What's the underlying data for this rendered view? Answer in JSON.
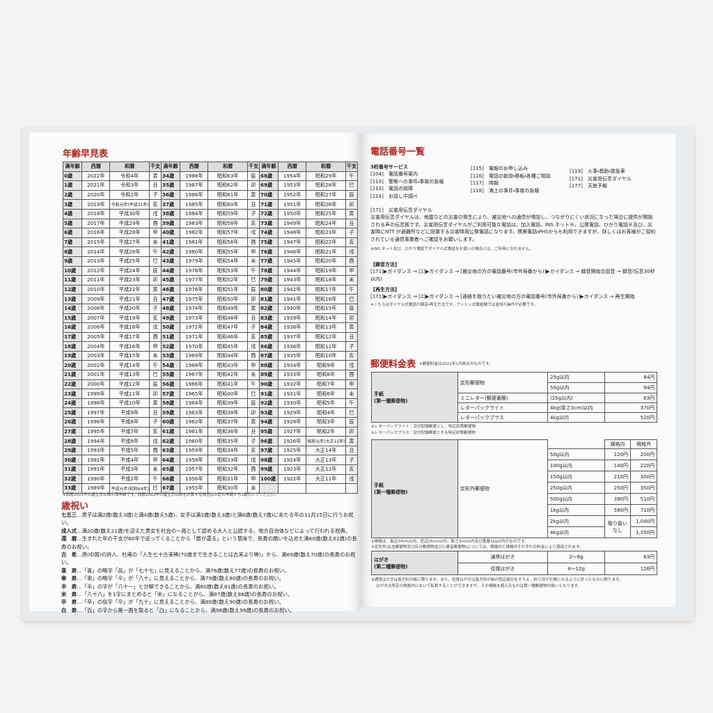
{
  "left_page": {
    "age_table": {
      "title": "年齢早見表",
      "header": [
        "満年齢",
        "西暦",
        "和暦",
        "干支",
        "満年齢",
        "西暦",
        "和暦",
        "干支",
        "満年齢",
        "西暦",
        "和暦",
        "干支"
      ],
      "rows": [
        [
          "0歳",
          "2022年",
          "令和4年",
          "寅",
          "34歳",
          "1988年",
          "昭和63年",
          "辰",
          "68歳",
          "1954年",
          "昭和29年",
          "午"
        ],
        [
          "1歳",
          "2021年",
          "令和3年",
          "丑",
          "35歳",
          "1987年",
          "昭和62年",
          "卯",
          "69歳",
          "1953年",
          "昭和28年",
          "巳"
        ],
        [
          "2歳",
          "2020年",
          "令和2年",
          "子",
          "36歳",
          "1986年",
          "昭和61年",
          "寅",
          "70歳",
          "1952年",
          "昭和27年",
          "辰"
        ],
        [
          "3歳",
          "2019年",
          "令和元年(平成31年)",
          "亥",
          "37歳",
          "1985年",
          "昭和60年",
          "丑",
          "71歳",
          "1951年",
          "昭和26年",
          "卯"
        ],
        [
          "4歳",
          "2018年",
          "平成30年",
          "戌",
          "38歳",
          "1984年",
          "昭和59年",
          "子",
          "72歳",
          "1950年",
          "昭和25年",
          "寅"
        ],
        [
          "5歳",
          "2017年",
          "平成29年",
          "酉",
          "39歳",
          "1983年",
          "昭和58年",
          "亥",
          "73歳",
          "1949年",
          "昭和24年",
          "丑"
        ],
        [
          "6歳",
          "2016年",
          "平成28年",
          "申",
          "40歳",
          "1982年",
          "昭和57年",
          "戌",
          "74歳",
          "1948年",
          "昭和23年",
          "子"
        ],
        [
          "7歳",
          "2015年",
          "平成27年",
          "未",
          "41歳",
          "1981年",
          "昭和56年",
          "酉",
          "75歳",
          "1947年",
          "昭和22年",
          "亥"
        ],
        [
          "8歳",
          "2014年",
          "平成26年",
          "午",
          "42歳",
          "1980年",
          "昭和55年",
          "申",
          "76歳",
          "1946年",
          "昭和21年",
          "戌"
        ],
        [
          "9歳",
          "2013年",
          "平成25年",
          "巳",
          "43歳",
          "1979年",
          "昭和54年",
          "未",
          "77歳",
          "1945年",
          "昭和20年",
          "酉"
        ],
        [
          "10歳",
          "2012年",
          "平成24年",
          "辰",
          "44歳",
          "1978年",
          "昭和53年",
          "午",
          "78歳",
          "1944年",
          "昭和19年",
          "申"
        ],
        [
          "11歳",
          "2011年",
          "平成23年",
          "卯",
          "45歳",
          "1977年",
          "昭和52年",
          "巳",
          "79歳",
          "1943年",
          "昭和18年",
          "未"
        ],
        [
          "12歳",
          "2010年",
          "平成22年",
          "寅",
          "46歳",
          "1976年",
          "昭和51年",
          "辰",
          "80歳",
          "1942年",
          "昭和17年",
          "午"
        ],
        [
          "13歳",
          "2009年",
          "平成21年",
          "丑",
          "47歳",
          "1975年",
          "昭和50年",
          "卯",
          "81歳",
          "1941年",
          "昭和16年",
          "巳"
        ],
        [
          "14歳",
          "2008年",
          "平成20年",
          "子",
          "48歳",
          "1974年",
          "昭和49年",
          "寅",
          "82歳",
          "1940年",
          "昭和15年",
          "辰"
        ],
        [
          "15歳",
          "2007年",
          "平成19年",
          "亥",
          "49歳",
          "1973年",
          "昭和48年",
          "丑",
          "83歳",
          "1939年",
          "昭和14年",
          "卯"
        ],
        [
          "16歳",
          "2006年",
          "平成18年",
          "戌",
          "50歳",
          "1972年",
          "昭和47年",
          "子",
          "84歳",
          "1938年",
          "昭和13年",
          "寅"
        ],
        [
          "17歳",
          "2005年",
          "平成17年",
          "酉",
          "51歳",
          "1971年",
          "昭和46年",
          "亥",
          "85歳",
          "1937年",
          "昭和12年",
          "丑"
        ],
        [
          "18歳",
          "2004年",
          "平成16年",
          "申",
          "52歳",
          "1970年",
          "昭和45年",
          "戌",
          "86歳",
          "1936年",
          "昭和11年",
          "子"
        ],
        [
          "19歳",
          "2003年",
          "平成15年",
          "未",
          "53歳",
          "1969年",
          "昭和44年",
          "酉",
          "87歳",
          "1935年",
          "昭和10年",
          "亥"
        ],
        [
          "20歳",
          "2002年",
          "平成14年",
          "午",
          "54歳",
          "1968年",
          "昭和43年",
          "申",
          "88歳",
          "1934年",
          "昭和9年",
          "戌"
        ],
        [
          "21歳",
          "2001年",
          "平成13年",
          "巳",
          "55歳",
          "1967年",
          "昭和42年",
          "未",
          "89歳",
          "1933年",
          "昭和8年",
          "酉"
        ],
        [
          "22歳",
          "2000年",
          "平成12年",
          "辰",
          "56歳",
          "1966年",
          "昭和41年",
          "午",
          "90歳",
          "1932年",
          "昭和7年",
          "申"
        ],
        [
          "23歳",
          "1999年",
          "平成11年",
          "卯",
          "57歳",
          "1965年",
          "昭和40年",
          "巳",
          "91歳",
          "1931年",
          "昭和6年",
          "未"
        ],
        [
          "24歳",
          "1998年",
          "平成10年",
          "寅",
          "58歳",
          "1964年",
          "昭和39年",
          "辰",
          "92歳",
          "1930年",
          "昭和5年",
          "午"
        ],
        [
          "25歳",
          "1997年",
          "平成9年",
          "丑",
          "59歳",
          "1963年",
          "昭和38年",
          "卯",
          "93歳",
          "1929年",
          "昭和4年",
          "巳"
        ],
        [
          "26歳",
          "1996年",
          "平成8年",
          "子",
          "60歳",
          "1962年",
          "昭和37年",
          "寅",
          "94歳",
          "1928年",
          "昭和3年",
          "辰"
        ],
        [
          "27歳",
          "1995年",
          "平成7年",
          "亥",
          "61歳",
          "1961年",
          "昭和36年",
          "丑",
          "95歳",
          "1927年",
          "昭和2年",
          "卯"
        ],
        [
          "28歳",
          "1994年",
          "平成6年",
          "戌",
          "62歳",
          "1960年",
          "昭和35年",
          "子",
          "96歳",
          "1926年",
          "昭和元年(大正15年)",
          "寅"
        ],
        [
          "29歳",
          "1993年",
          "平成5年",
          "酉",
          "63歳",
          "1959年",
          "昭和34年",
          "亥",
          "97歳",
          "1925年",
          "大正14年",
          "丑"
        ],
        [
          "30歳",
          "1992年",
          "平成4年",
          "申",
          "64歳",
          "1958年",
          "昭和33年",
          "戌",
          "98歳",
          "1924年",
          "大正13年",
          "子"
        ],
        [
          "31歳",
          "1991年",
          "平成3年",
          "未",
          "65歳",
          "1957年",
          "昭和32年",
          "酉",
          "99歳",
          "1923年",
          "大正12年",
          "亥"
        ],
        [
          "32歳",
          "1990年",
          "平成2年",
          "午",
          "66歳",
          "1956年",
          "昭和31年",
          "申",
          "100歳",
          "1922年",
          "大正11年",
          "戌"
        ],
        [
          "33歳",
          "1989年",
          "平成元年(昭和64年)",
          "巳",
          "67歳",
          "1955年",
          "昭和30年",
          "未"
        ]
      ],
      "note": "※西暦2022年の誕生日以降の満年齢です。西暦2022年の誕生日以前を計算する場合は上記の年齢から1歳引いてください。"
    },
    "celebrations": {
      "title": "歳祝い",
      "items": [
        {
          "term": "七五三",
          "text": "…男子は満2歳(数え3歳)と満4歳(数え5歳)、女子は満2歳(数え3歳)と満6歳(数え7歳)にあたる年の11月15日に行うお祝い。"
        },
        {
          "term": "成人式",
          "text": "…満20歳(数え21歳)を迎えた男女を社会の一員として認める大人と公認する、地方自治体などによって行われる祝典。"
        },
        {
          "term": "還　暦",
          "text": "…生まれた年の干支が60年で巡ってくることから「暦が還る」という意味で、長寿の願いを込めた満60歳(数え61歳)の長寿のお祝い。"
        },
        {
          "term": "古　希",
          "text": "…唐(中国)の詩人、杜甫の「人生七十古来稀(70歳まで生きることは古来より稀)」から、満69歳(数え70歳)の長寿のお祝い。"
        },
        {
          "term": "喜　寿",
          "text": "…「喜」の略字「㐂」が「七十七」に見えることから、満76歳(数え77歳)の長寿のお祝い。"
        },
        {
          "term": "傘　寿",
          "text": "…「傘」の略字「仐」が「八十」に見えることから、満79歳(数え80歳)の長寿のお祝い。"
        },
        {
          "term": "半　寿",
          "text": "…「半」の字が「八十一」と分解できることから、満80歳(数え81歳)の長寿のお祝い。"
        },
        {
          "term": "米　寿",
          "text": "…「八十八」を1字にまとめると「米」になることから、満87歳(数え88歳)の長寿のお祝い。"
        },
        {
          "term": "卒　寿",
          "text": "…「卒」の俗字「卆」が「九十」に見えることから、満89歳(数え90歳)の長寿のお祝い。"
        },
        {
          "term": "白　寿",
          "text": "…「百」の字から第一画を取ると「白」になることから、満98歳(数え99歳)の長寿のお祝い。"
        }
      ]
    }
  },
  "right_page": {
    "phone": {
      "title": "電話番号一覧",
      "subtitle": "3桁番号サービス",
      "service_columns": [
        [
          {
            "code": "[104]",
            "label": "電話番号案内"
          },
          {
            "code": "[110]",
            "label": "警察への事件・事故の急報"
          },
          {
            "code": "[113]",
            "label": "電話の故障"
          },
          {
            "code": "[114]",
            "label": "お話し中調べ"
          }
        ],
        [
          {
            "code": "[115]",
            "label": "電報のお申し込み"
          },
          {
            "code": "[116]",
            "label": "電話の新設・移転・各種ご相談"
          },
          {
            "code": "[117]",
            "label": "時報"
          },
          {
            "code": "[118]",
            "label": "海上の事件・事故の急報"
          }
        ],
        [
          {
            "code": "[119]",
            "label": "火事・救助・救急車"
          },
          {
            "code": "[171]",
            "label": "災害用伝言ダイヤル"
          },
          {
            "code": "[177]",
            "label": "天気予報"
          }
        ]
      ],
      "dial171": {
        "heading": "[171]　災害用伝言ダイヤル",
        "body": "災害用伝言ダイヤルは、地震などの災害の発生により、被災地への通信が増加し、つながりにくい状況になった場合に提供が開始される声の伝言板です。災害用伝言ダイヤルがご利用可能な電話は、加入電話、INS ネット®、公衆電話、ひかり電話®及び、災害時にNTT が避難所などに設置する災害時用公衆電話になります。携帯電話・PHSからも利用できますが、詳しくはお客様がご契約されている通信事業者へご確認をお願いします。",
        "note": "※INS ネット及び、ひかり電話でダイヤル式電話をお使いの場合には、ご利用になれません。",
        "record_heading": "【録音方法】",
        "record_steps": "[171]▶ガイダンス → [1]▶ガイダンス → [被災地の方の電話番号(市外局番から)]▶ガイダンス → 録音開始合図音 → 録音(伝言30秒以内)",
        "play_heading": "【再生方法】",
        "play_steps": "[171]▶ガイダンス → [2]▶ガイダンス → [連絡を取りたい被災地の方の電話番号(市外局番から)]▶ガイダンス → 再生開始",
        "play_note": "※こちらはダイヤル式電話の録音・再生方法です。プッシュ式電話機では追加の操作が必要です。"
      }
    },
    "postal": {
      "title": "郵便料金表",
      "note": "※郵便料金は2021年1月時点のものです。",
      "letter_table": {
        "category": "手紙",
        "category_sub": "(第一種郵便物)",
        "rows": [
          {
            "type": "定形郵便物",
            "weight": "25g以内",
            "price": "84円"
          },
          {
            "weight": "50g以内",
            "price": "94円"
          },
          {
            "type": "ミニレター(郵便書簡)",
            "weight": "(25g以内)",
            "price": "63円"
          },
          {
            "type": "レターパックライト",
            "weight": "4kg(厚さ3cm)以内",
            "price": "370円"
          },
          {
            "type": "レターパックプラス",
            "weight": "4kg以内",
            "price": "520円"
          }
        ]
      },
      "letter_notes": [
        "※レターパックライト：交付記録郵便とし、特定封筒郵便物",
        "※レターパックプラス：交付記録郵便とする特定封筒郵便物"
      ],
      "nonstandard_table": {
        "category": "手紙",
        "category_sub": "(第一種郵便物)",
        "type": "定形外郵便物",
        "headers": [
          "規格内",
          "規格外"
        ],
        "not_available": "取り扱いなし",
        "rows": [
          {
            "weight": "50g以内",
            "standard": "120円",
            "nonstandard": "200円"
          },
          {
            "weight": "100g以内",
            "standard": "140円",
            "nonstandard": "220円"
          },
          {
            "weight": "150g以内",
            "standard": "210円",
            "nonstandard": "300円"
          },
          {
            "weight": "250g以内",
            "standard": "250円",
            "nonstandard": "350円"
          },
          {
            "weight": "500g以内",
            "standard": "390円",
            "nonstandard": "510円"
          },
          {
            "weight": "1kg以内",
            "standard": "580円",
            "nonstandard": "710円"
          },
          {
            "weight": "2kg以内",
            "nonstandard": "1,040円"
          },
          {
            "weight": "4kg以内",
            "nonstandard": "1,350円"
          }
        ]
      },
      "nonstandard_notes": [
        "※規格は、長辺34cm以内、短辺25cm以内、厚さ3cm以内及び重量1kg以内のものです。",
        "※定形外(広告郵便物及び区分郵便物並びに書留郵便物)については、規格内と規格外それぞれの料金により適用されます。"
      ],
      "postcard_table": {
        "category": "はがき",
        "category_sub": "(第二種郵便物)",
        "rows": [
          {
            "type": "通常はがき",
            "weight": "2〜6g",
            "price": "63円"
          },
          {
            "type": "往復はがき",
            "weight": "4〜12g",
            "price": "126円"
          }
        ]
      },
      "postcard_notes": [
        "※通常はがきは長方形の紙に限ります。また、往復はがきは長方形の紙の短辺部分をそろえ、折り目が左側になるように折ったものに限ります。",
        "はがきは所定の規格内において私製することができますが、その規格を超えるものは第一種郵便物の扱いとなります。"
      ]
    }
  }
}
